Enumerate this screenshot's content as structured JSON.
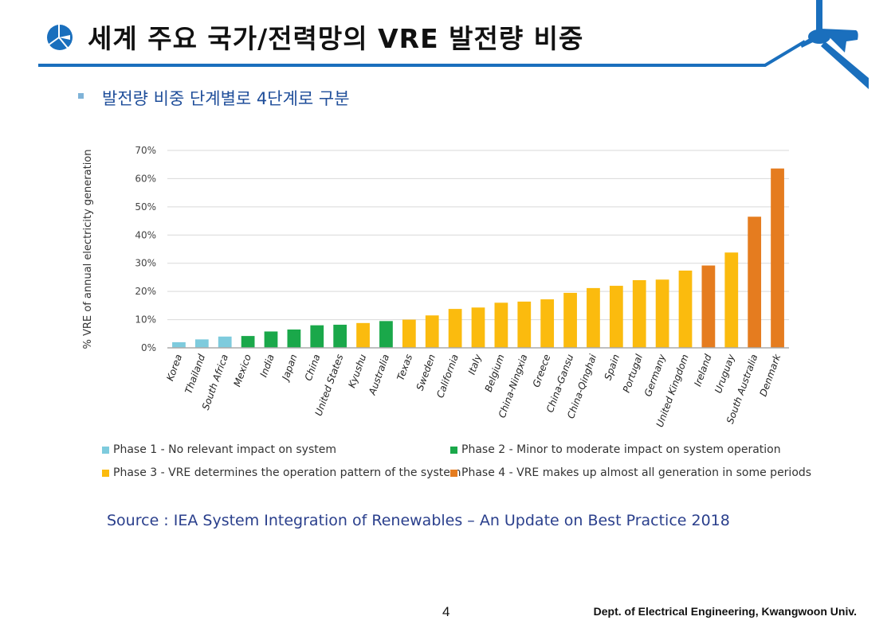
{
  "header": {
    "title": "세계 주요 국가/전력망의 VRE 발전량 비중",
    "accent_color": "#1a6fbd"
  },
  "bullet": {
    "text": "발전량 비중 단계별로 4단계로 구분"
  },
  "chart_data": {
    "type": "bar",
    "title": "",
    "xlabel": "",
    "ylabel": "% VRE of annual electricity generation",
    "ylim": [
      0,
      70
    ],
    "yticks": [
      "0%",
      "10%",
      "20%",
      "30%",
      "40%",
      "50%",
      "60%",
      "70%"
    ],
    "grid": true,
    "legend_position": "bottom",
    "categories": [
      "Korea",
      "Thailand",
      "South Africa",
      "Mexico",
      "India",
      "Japan",
      "China",
      "United States",
      "Kyushu",
      "Australia",
      "Texas",
      "Sweden",
      "California",
      "Italy",
      "Belgium",
      "China-Ningxia",
      "Greece",
      "China-Gansu",
      "China-Qinghai",
      "Spain",
      "Portugal",
      "Germany",
      "United Kingdom",
      "Ireland",
      "Uruguay",
      "South Australia",
      "Denmark"
    ],
    "values": [
      2.0,
      3.0,
      4.0,
      4.2,
      5.8,
      6.5,
      8.0,
      8.2,
      8.8,
      9.5,
      10.0,
      11.5,
      13.8,
      14.3,
      16.0,
      16.4,
      17.2,
      19.5,
      21.2,
      22.0,
      24.0,
      24.2,
      27.4,
      29.2,
      33.8,
      46.5,
      63.6
    ],
    "phase": [
      1,
      1,
      1,
      2,
      2,
      2,
      2,
      2,
      3,
      2,
      3,
      3,
      3,
      3,
      3,
      3,
      3,
      3,
      3,
      3,
      3,
      3,
      3,
      4,
      3,
      4,
      4
    ],
    "phase_colors": {
      "1": "#7ecbdd",
      "2": "#1aa84a",
      "3": "#fbbb0e",
      "4": "#e57c1f"
    },
    "legend": [
      {
        "phase": 1,
        "label": "Phase 1 - No relevant impact on system",
        "color": "#7ecbdd"
      },
      {
        "phase": 2,
        "label": "Phase 2 - Minor to moderate impact on system operation",
        "color": "#1aa84a"
      },
      {
        "phase": 3,
        "label": "Phase 3 - VRE determines the operation pattern of the system",
        "color": "#fbbb0e"
      },
      {
        "phase": 4,
        "label": "Phase 4 - VRE makes up almost all generation in some periods",
        "color": "#e57c1f"
      }
    ]
  },
  "source": "Source : IEA System Integration of Renewables – An Update on Best Practice 2018",
  "footer": {
    "page_number": "4",
    "affiliation": "Dept. of Electrical Engineering, Kwangwoon Univ."
  }
}
